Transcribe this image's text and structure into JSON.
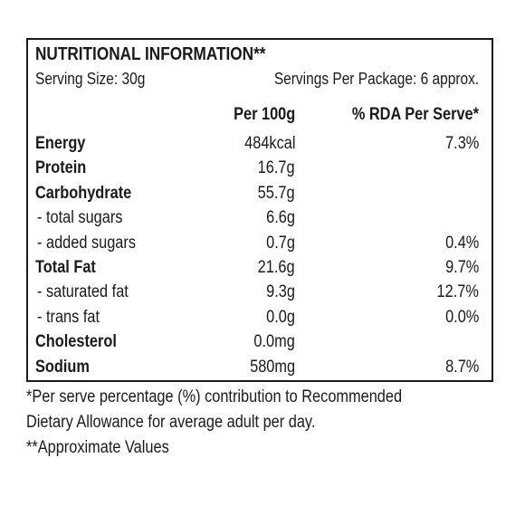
{
  "label": {
    "title": "NUTRITIONAL INFORMATION**",
    "serving_size": "Serving Size: 30g",
    "servings_per_package": "Servings Per Package: 6 approx.",
    "col_per100": "Per 100g",
    "col_rda": "% RDA Per Serve*"
  },
  "rows": [
    {
      "name": "Energy",
      "per100": "484kcal",
      "rda": "7.3%"
    },
    {
      "name": "Protein",
      "per100": "16.7g",
      "rda": ""
    },
    {
      "name": "Carbohydrate",
      "per100": "55.7g",
      "rda": ""
    },
    {
      "name": "- total sugars",
      "per100": "6.6g",
      "rda": ""
    },
    {
      "name": "- added sugars",
      "per100": "0.7g",
      "rda": "0.4%"
    },
    {
      "name": "Total Fat",
      "per100": "21.6g",
      "rda": "9.7%"
    },
    {
      "name": "- saturated fat",
      "per100": "9.3g",
      "rda": "12.7%"
    },
    {
      "name": "- trans fat",
      "per100": "0.0g",
      "rda": "0.0%"
    },
    {
      "name": "Cholesterol",
      "per100": "0.0mg",
      "rda": ""
    },
    {
      "name": "Sodium",
      "per100": "580mg",
      "rda": "8.7%"
    }
  ],
  "footnotes": {
    "line1": "*Per serve percentage (%) contribution to Recommended",
    "line2": "Dietary Allowance for average adult per day.",
    "line3": "**Approximate Values"
  }
}
